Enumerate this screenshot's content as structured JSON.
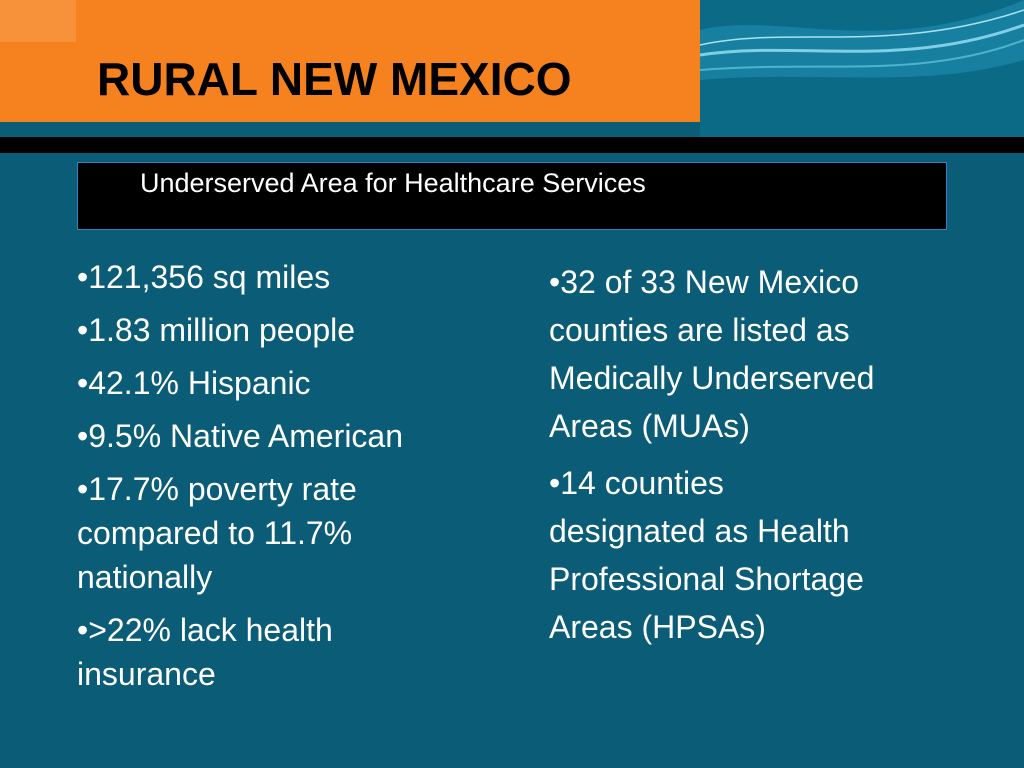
{
  "slide": {
    "title": "RURAL NEW MEXICO",
    "subtitle": "Underserved Area for Healthcare Services",
    "left_bullets": [
      [
        "•121,356 sq miles"
      ],
      [
        "•1.83 million people"
      ],
      [
        "•42.1% Hispanic"
      ],
      [
        "•9.5% Native American"
      ],
      [
        "•17.7% poverty rate",
        "compared to 11.7%",
        "nationally"
      ],
      [
        "•>22% lack health",
        "insurance"
      ]
    ],
    "right_bullets": [
      [
        "•32 of 33 New Mexico",
        "counties are listed as",
        "Medically Underserved",
        "Areas (MUAs)"
      ],
      [
        "•14 counties",
        "designated as Health",
        "Professional Shortage",
        "Areas (HPSAs)"
      ]
    ]
  }
}
